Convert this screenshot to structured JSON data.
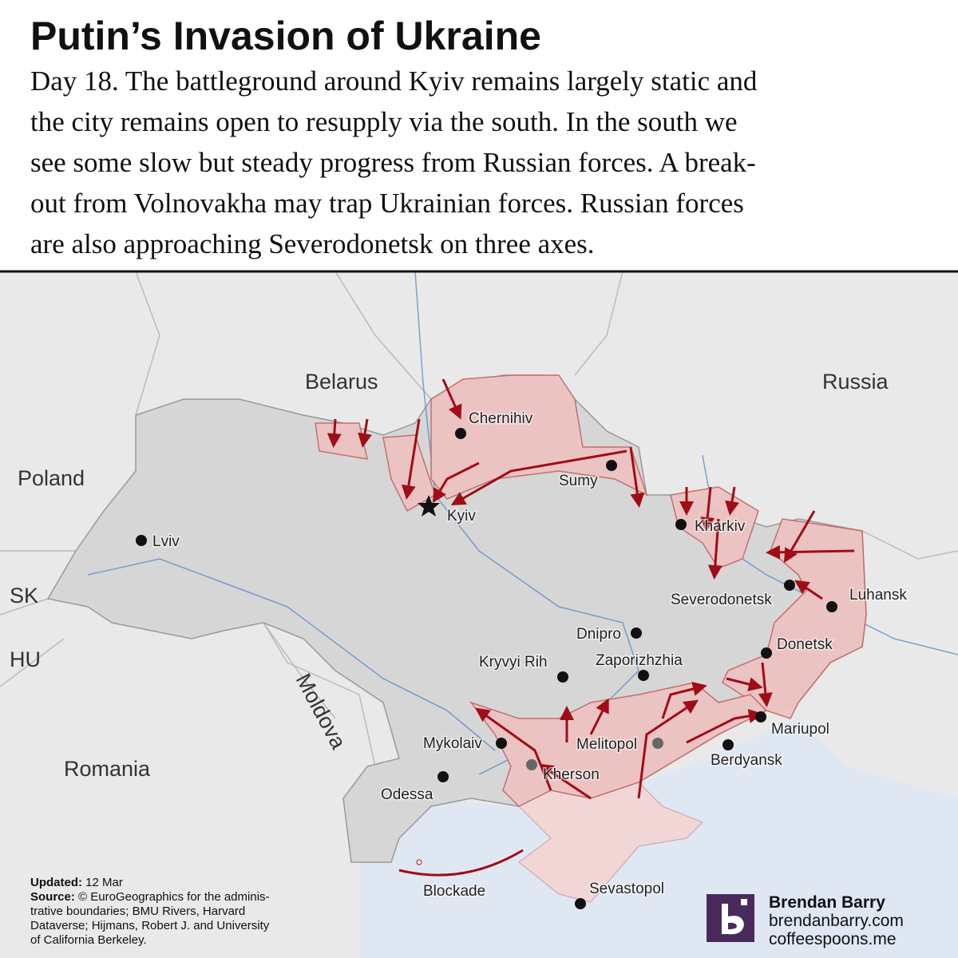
{
  "header": {
    "title": "Putin’s Invasion of Ukraine",
    "description": [
      "Day 18. The battleground around Kyiv remains largely static and",
      "the city remains open to resupply via the south. In the south we",
      "see some slow but steady progress from Russian forces. A break-",
      "out from Volnovakha may trap Ukrainian forces. Russian forces",
      "are also approaching Severodonetsk on three axes."
    ]
  },
  "map": {
    "countries": [
      "Belarus",
      "Russia",
      "Poland",
      "SK",
      "HU",
      "Romania",
      "Moldova"
    ],
    "cities": [
      "Chernihiv",
      "Sumy",
      "Kyiv",
      "Kharkiv",
      "Severodonetsk",
      "Luhansk",
      "Dnipro",
      "Donetsk",
      "Kryvyi Rih",
      "Zaporizhzhia",
      "Mykolaiv",
      "Kherson",
      "Melitopol",
      "Berdyansk",
      "Mariupol",
      "Odessa",
      "Sevastopol",
      "Lviv"
    ],
    "annotations": [
      "Blockade"
    ]
  },
  "footer": {
    "updated_label": "Updated:",
    "updated": "12 Mar",
    "source_label": "Source:",
    "source": [
      "© EuroGeographics for the adminis-",
      "trative boundaries; BMU Rivers, Harvard",
      "Dataverse; Hijmans, Robert J. and University",
      "of California Berkeley."
    ]
  },
  "brand": {
    "name": "Brendan Barry",
    "urls": [
      "brendanbarry.com",
      "coffeespoons.me"
    ]
  }
}
